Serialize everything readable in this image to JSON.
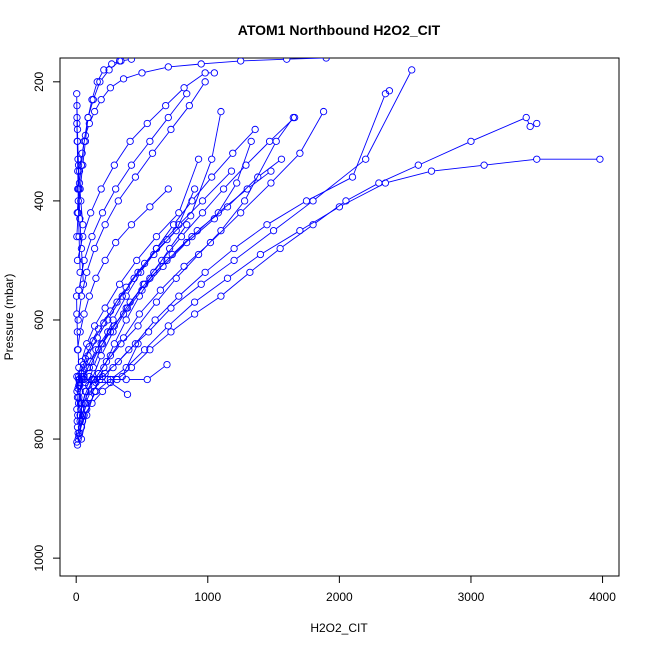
{
  "chart_data": {
    "type": "scatter",
    "title": "ATOM1 Northbound H2O2_CIT",
    "xlabel": "H2O2_CIT",
    "ylabel": "Pressure (mbar)",
    "xlim": [
      0,
      4000
    ],
    "ylim": [
      1030,
      160
    ],
    "y_inverted": true,
    "xticks": [
      0,
      1000,
      2000,
      3000,
      4000
    ],
    "yticks": [
      200,
      400,
      600,
      800,
      1000
    ],
    "grid": false,
    "legend": "none",
    "marker": "open-circle",
    "line_connected": true,
    "color": "#0000ff",
    "series": [
      {
        "x": [
          10,
          25,
          60,
          120,
          200,
          310,
          420,
          560,
          720,
          900,
          1100,
          1320,
          1550,
          1800,
          2050,
          2300,
          2600,
          3000,
          3420,
          3450,
          3500
        ],
        "y": [
          810,
          790,
          760,
          740,
          720,
          700,
          680,
          650,
          620,
          590,
          560,
          520,
          480,
          440,
          400,
          370,
          340,
          300,
          260,
          275,
          270
        ]
      },
      {
        "x": [
          15,
          40,
          80,
          150,
          260,
          380,
          520,
          700,
          900,
          1150,
          1400,
          1700,
          2000,
          2350,
          2700,
          3100,
          3500,
          3980
        ],
        "y": [
          800,
          780,
          750,
          720,
          700,
          680,
          650,
          610,
          570,
          530,
          490,
          450,
          410,
          370,
          350,
          340,
          330,
          330
        ]
      },
      {
        "x": [
          5,
          30,
          70,
          130,
          220,
          320,
          450,
          600,
          780,
          980,
          1200,
          1450,
          1750,
          2100,
          2350,
          2380
        ],
        "y": [
          805,
          770,
          740,
          710,
          690,
          670,
          640,
          600,
          560,
          520,
          480,
          440,
          400,
          360,
          220,
          215
        ]
      },
      {
        "x": [
          20,
          50,
          100,
          180,
          280,
          400,
          550,
          720,
          950,
          1200,
          1500,
          1800,
          2200,
          2550
        ],
        "y": [
          795,
          760,
          730,
          700,
          680,
          650,
          620,
          580,
          540,
          500,
          450,
          400,
          330,
          180
        ]
      },
      {
        "x": [
          10,
          45,
          95,
          170,
          260,
          360,
          480,
          640,
          820,
          1020,
          1250,
          1480,
          1700,
          1880
        ],
        "y": [
          780,
          740,
          710,
          690,
          660,
          630,
          590,
          550,
          510,
          470,
          420,
          370,
          320,
          250
        ]
      },
      {
        "x": [
          15,
          35,
          75,
          140,
          230,
          340,
          470,
          610,
          760,
          930,
          1100,
          1280,
          1520,
          1650
        ],
        "y": [
          790,
          750,
          720,
          700,
          670,
          640,
          610,
          570,
          530,
          490,
          450,
          400,
          300,
          260
        ]
      },
      {
        "x": [
          8,
          20,
          50,
          100,
          170,
          260,
          380,
          520,
          690,
          880,
          1080,
          1300,
          1480
        ],
        "y": [
          770,
          730,
          700,
          680,
          650,
          620,
          580,
          540,
          500,
          460,
          420,
          380,
          350
        ]
      },
      {
        "x": [
          12,
          30,
          60,
          110,
          190,
          290,
          410,
          560,
          730,
          920,
          1150,
          1380,
          1560
        ],
        "y": [
          760,
          720,
          695,
          670,
          640,
          610,
          570,
          530,
          490,
          450,
          410,
          360,
          330
        ]
      },
      {
        "x": [
          5,
          20,
          45,
          90,
          160,
          240,
          350,
          470,
          610,
          780,
          960,
          1180
        ],
        "y": [
          750,
          710,
          690,
          660,
          630,
          600,
          560,
          520,
          480,
          440,
          400,
          350
        ]
      },
      {
        "x": [
          18,
          40,
          85,
          150,
          240,
          360,
          500,
          660,
          840,
          1050,
          1220,
          1330
        ],
        "y": [
          740,
          700,
          680,
          650,
          620,
          590,
          550,
          510,
          470,
          430,
          370,
          300
        ]
      },
      {
        "x": [
          10,
          25,
          55,
          100,
          170,
          260,
          380,
          520,
          690,
          870,
          1030,
          1100
        ],
        "y": [
          730,
          700,
          675,
          645,
          615,
          585,
          545,
          505,
          465,
          425,
          330,
          250
        ]
      },
      {
        "x": [
          6,
          18,
          40,
          80,
          140,
          220,
          330,
          460,
          610,
          780,
          930
        ],
        "y": [
          720,
          695,
          670,
          640,
          610,
          580,
          540,
          500,
          460,
          420,
          330
        ]
      },
      {
        "x": [
          14,
          35,
          70,
          130,
          210,
          310,
          440,
          590,
          760,
          900
        ],
        "y": [
          715,
          690,
          665,
          635,
          605,
          570,
          530,
          490,
          450,
          380
        ]
      },
      {
        "x": [
          20,
          60,
          130,
          240,
          380,
          540,
          690
        ],
        "y": [
          700,
          700,
          700,
          700,
          700,
          700,
          675
        ]
      },
      {
        "x": [
          5,
          40,
          100,
          200,
          350,
          470
        ],
        "y": [
          695,
          695,
          695,
          695,
          695,
          640
        ]
      },
      {
        "x": [
          25,
          70,
          150,
          260,
          390
        ],
        "y": [
          705,
          705,
          705,
          705,
          725
        ]
      },
      {
        "x": [
          10,
          30,
          60,
          100,
          150,
          220,
          300,
          420,
          560,
          700
        ],
        "y": [
          650,
          620,
          590,
          560,
          530,
          500,
          470,
          440,
          410,
          380
        ]
      },
      {
        "x": [
          15,
          40,
          80,
          140,
          220,
          320,
          450,
          580,
          720,
          860,
          980
        ],
        "y": [
          600,
          560,
          520,
          480,
          440,
          400,
          360,
          320,
          280,
          240,
          200
        ]
      },
      {
        "x": [
          20,
          60,
          120,
          200,
          300,
          420,
          560,
          700,
          840
        ],
        "y": [
          550,
          500,
          460,
          420,
          380,
          340,
          300,
          260,
          220
        ]
      },
      {
        "x": [
          10,
          50,
          110,
          190,
          290,
          410,
          540,
          680,
          820,
          980,
          1050
        ],
        "y": [
          500,
          460,
          420,
          380,
          340,
          300,
          270,
          240,
          210,
          185,
          185
        ]
      },
      {
        "x": [
          5,
          15,
          30,
          50,
          70,
          90,
          120,
          160,
          210,
          270,
          340,
          420
        ],
        "y": [
          460,
          420,
          380,
          340,
          300,
          260,
          230,
          200,
          180,
          170,
          165,
          162
        ]
      },
      {
        "x": [
          8,
          20,
          40,
          60,
          90,
          130,
          180,
          250,
          330
        ],
        "y": [
          420,
          380,
          340,
          300,
          260,
          230,
          200,
          180,
          165
        ]
      },
      {
        "x": [
          12,
          25,
          45,
          70,
          100,
          140,
          190,
          260,
          360,
          500,
          700,
          950,
          1250,
          1600,
          1900
        ],
        "y": [
          380,
          350,
          320,
          290,
          270,
          250,
          230,
          210,
          195,
          185,
          175,
          170,
          165,
          162,
          160
        ]
      },
      {
        "x": [
          5,
          10,
          18,
          25,
          35,
          50
        ],
        "y": [
          270,
          300,
          340,
          370,
          400,
          440
        ]
      },
      {
        "x": [
          4,
          6,
          8,
          12,
          16,
          22,
          30
        ],
        "y": [
          220,
          260,
          300,
          350,
          400,
          460,
          520
        ]
      },
      {
        "x": [
          6,
          10,
          14,
          20,
          28,
          40,
          55
        ],
        "y": [
          240,
          280,
          330,
          380,
          430,
          480,
          540
        ]
      },
      {
        "x": [
          3,
          5,
          9,
          14,
          20,
          27,
          36,
          48
        ],
        "y": [
          560,
          590,
          620,
          650,
          680,
          710,
          740,
          770
        ]
      },
      {
        "x": [
          40,
          80,
          140,
          210,
          290,
          380,
          480,
          590,
          710,
          840
        ],
        "y": [
          800,
          760,
          720,
          680,
          640,
          600,
          560,
          520,
          480,
          440
        ]
      },
      {
        "x": [
          30,
          70,
          130,
          200,
          280,
          380,
          490,
          610,
          740,
          880,
          1030,
          1190,
          1360
        ],
        "y": [
          760,
          720,
          680,
          640,
          600,
          560,
          520,
          480,
          440,
          400,
          360,
          320,
          280
        ]
      },
      {
        "x": [
          60,
          120,
          190,
          280,
          390,
          510,
          650,
          800,
          960,
          1120,
          1290,
          1470,
          1660
        ],
        "y": [
          740,
          700,
          660,
          620,
          580,
          540,
          500,
          460,
          420,
          380,
          340,
          300,
          260
        ]
      }
    ]
  }
}
